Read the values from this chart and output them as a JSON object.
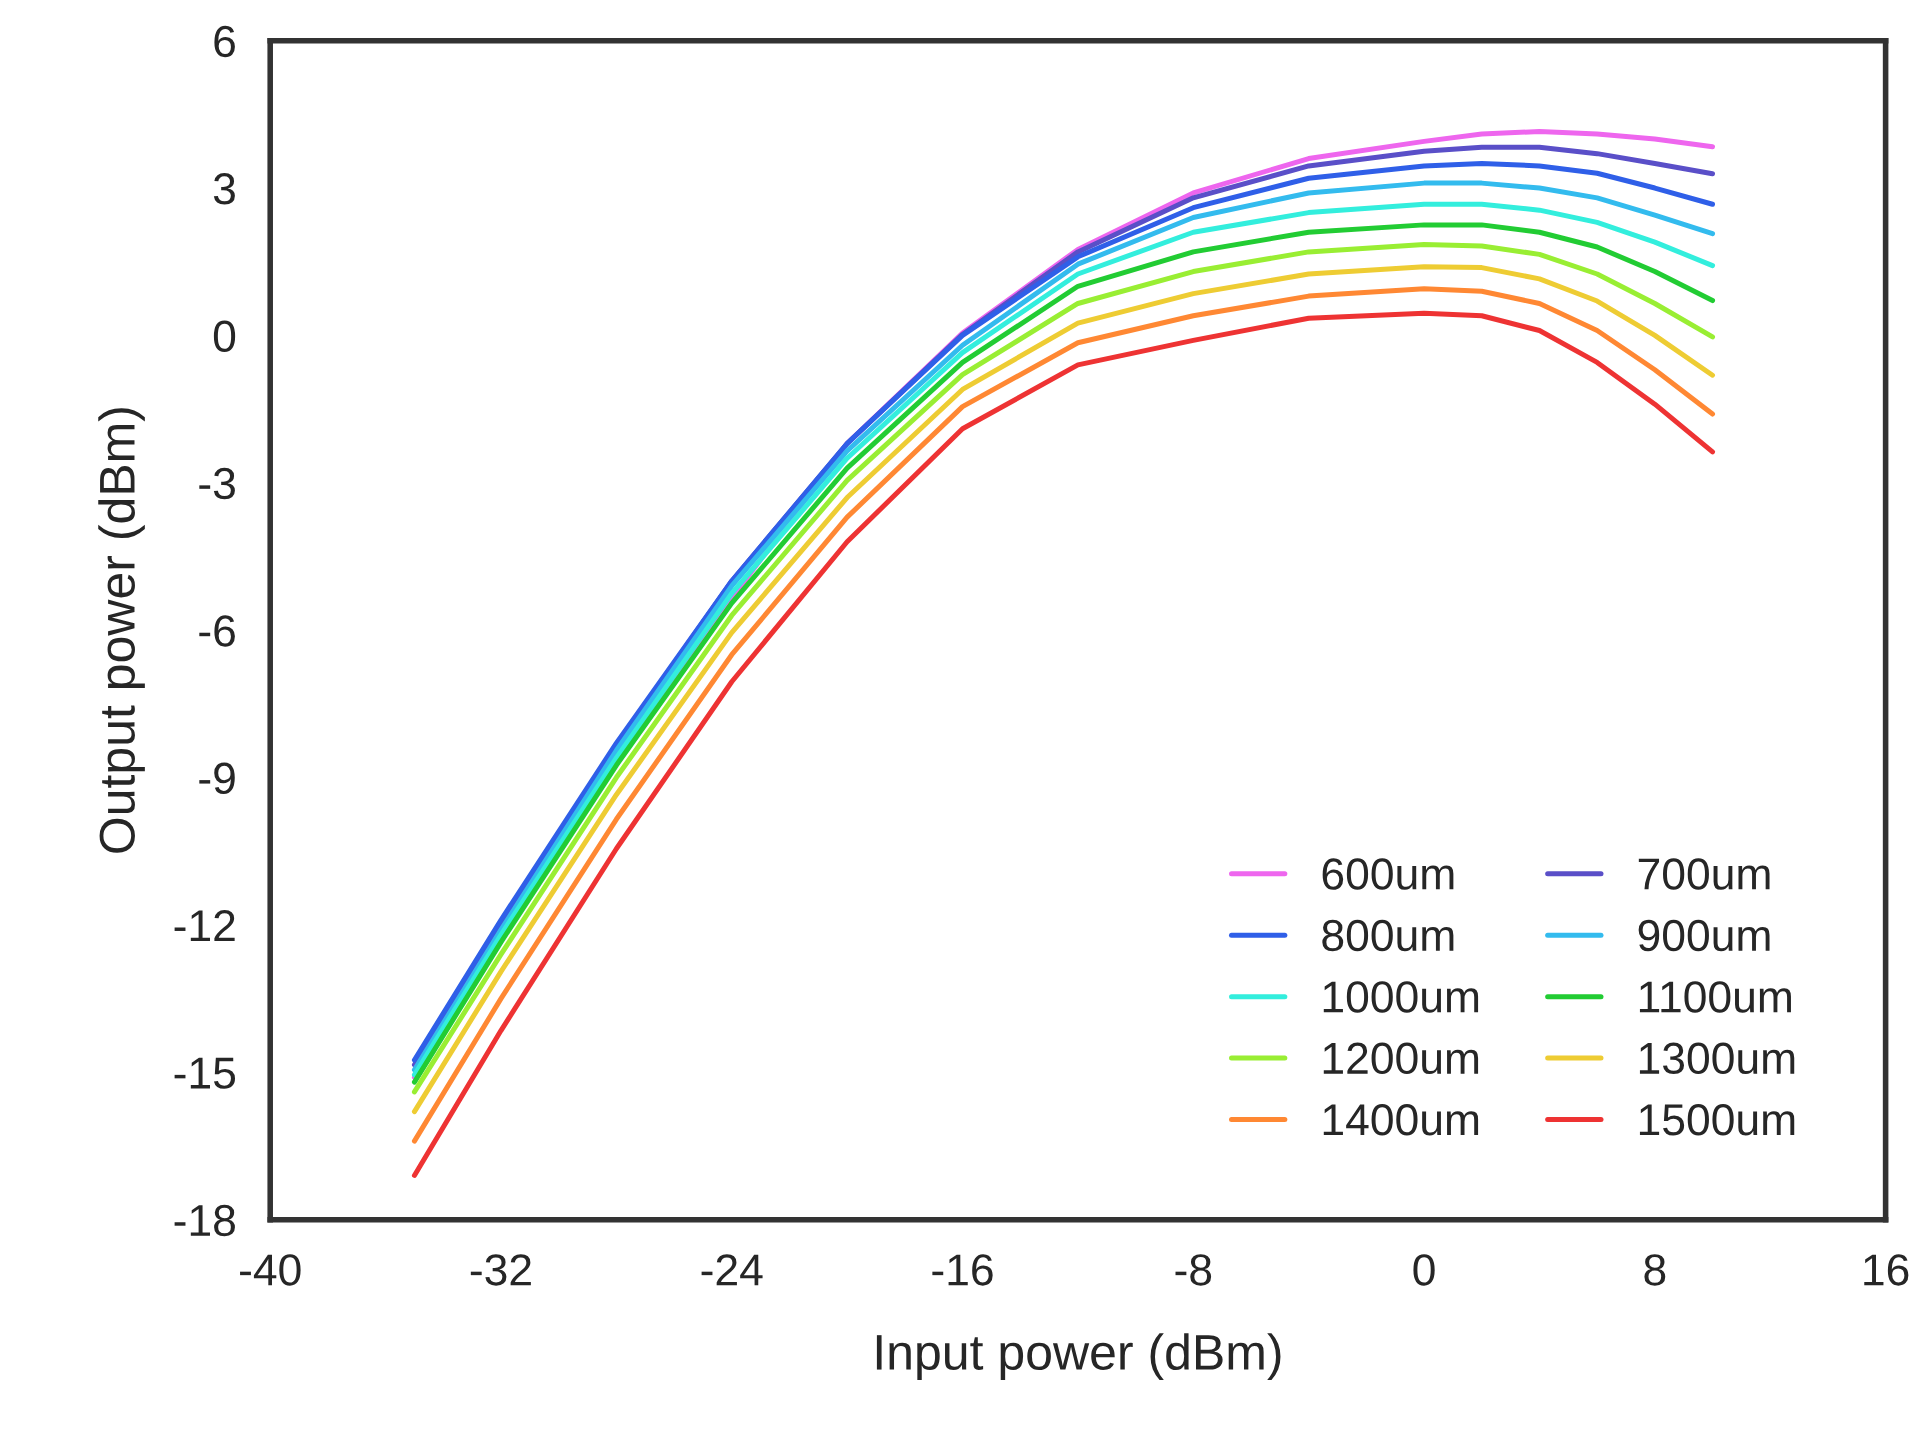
{
  "chart_data": {
    "type": "line",
    "xlabel": "Input power (dBm)",
    "ylabel": "Output power (dBm)",
    "x": [
      -35,
      -32,
      -28,
      -24,
      -20,
      -16,
      -12,
      -8,
      -4,
      0,
      2,
      4,
      6,
      8,
      10
    ],
    "xlim": [
      -40,
      16
    ],
    "xticks": [
      -40,
      -32,
      -24,
      -16,
      -8,
      0,
      8,
      16
    ],
    "ylim": [
      -18,
      6
    ],
    "yticks": [
      -18,
      -15,
      -12,
      -9,
      -6,
      -3,
      0,
      3,
      6
    ],
    "grid": false,
    "legend": "bottom right",
    "marker": "none",
    "line_style": "solid",
    "series": [
      {
        "name": "600um",
        "color": "#ee66ee",
        "values": [
          -15.1,
          -12.28,
          -8.68,
          -5.35,
          -2.2,
          0.05,
          1.75,
          2.9,
          3.6,
          3.95,
          4.1,
          4.15,
          4.1,
          4.0,
          3.84
        ]
      },
      {
        "name": "700um",
        "color": "#5a4fc8",
        "values": [
          -14.85,
          -12.0,
          -8.35,
          -5.0,
          -2.2,
          0.02,
          1.7,
          2.8,
          3.45,
          3.75,
          3.83,
          3.83,
          3.7,
          3.5,
          3.29
        ]
      },
      {
        "name": "800um",
        "color": "#2f5fe8",
        "values": [
          -14.75,
          -11.9,
          -8.3,
          -5.0,
          -2.2,
          0.0,
          1.6,
          2.6,
          3.2,
          3.45,
          3.5,
          3.45,
          3.3,
          3.0,
          2.67
        ]
      },
      {
        "name": "900um",
        "color": "#33bbee",
        "values": [
          -14.95,
          -12.1,
          -8.45,
          -5.1,
          -2.35,
          -0.2,
          1.45,
          2.4,
          2.9,
          3.1,
          3.1,
          3.0,
          2.8,
          2.45,
          2.07
        ]
      },
      {
        "name": "1000um",
        "color": "#33eedd",
        "values": [
          -15.05,
          -12.2,
          -8.6,
          -5.25,
          -2.5,
          -0.35,
          1.25,
          2.1,
          2.5,
          2.67,
          2.67,
          2.55,
          2.3,
          1.9,
          1.42
        ]
      },
      {
        "name": "1100um",
        "color": "#22cc33",
        "values": [
          -15.2,
          -12.35,
          -8.75,
          -5.45,
          -2.7,
          -0.55,
          1.0,
          1.7,
          2.1,
          2.25,
          2.25,
          2.1,
          1.8,
          1.3,
          0.71
        ]
      },
      {
        "name": "1200um",
        "color": "#99ee33",
        "values": [
          -15.4,
          -12.6,
          -9.0,
          -5.7,
          -2.95,
          -0.8,
          0.65,
          1.3,
          1.7,
          1.85,
          1.82,
          1.65,
          1.25,
          0.65,
          -0.03
        ]
      },
      {
        "name": "1300um",
        "color": "#eecc33",
        "values": [
          -15.8,
          -12.95,
          -9.35,
          -6.05,
          -3.3,
          -1.1,
          0.25,
          0.85,
          1.25,
          1.4,
          1.38,
          1.15,
          0.7,
          0.0,
          -0.81
        ]
      },
      {
        "name": "1400um",
        "color": "#ff8833",
        "values": [
          -16.4,
          -13.5,
          -9.85,
          -6.5,
          -3.7,
          -1.45,
          -0.15,
          0.4,
          0.8,
          0.95,
          0.9,
          0.65,
          0.1,
          -0.7,
          -1.6
        ]
      },
      {
        "name": "1500um",
        "color": "#ee3333",
        "values": [
          -17.1,
          -14.15,
          -10.45,
          -7.05,
          -4.2,
          -1.9,
          -0.6,
          -0.1,
          0.35,
          0.45,
          0.4,
          0.1,
          -0.55,
          -1.4,
          -2.37
        ]
      }
    ]
  }
}
